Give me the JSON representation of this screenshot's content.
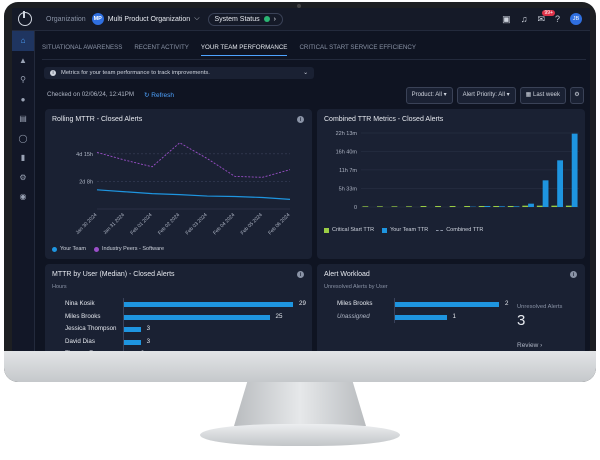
{
  "topbar": {
    "org_label": "Organization",
    "org_initials": "MP",
    "org_name": "Multi Product Organization",
    "status_label": "System Status",
    "notif_count": "99+",
    "user_initials": "JB"
  },
  "tabs": [
    {
      "label": "SITUATIONAL AWARENESS",
      "active": false
    },
    {
      "label": "RECENT ACTIVITY",
      "active": false
    },
    {
      "label": "YOUR TEAM PERFORMANCE",
      "active": true
    },
    {
      "label": "CRITICAL START SERVICE EFFICIENCY",
      "active": false
    }
  ],
  "info_bar": {
    "text": "Metrics for your team performance to track improvements."
  },
  "checked": {
    "text": "Checked on 02/06/24, 12:41PM",
    "refresh": "Refresh"
  },
  "filters": {
    "product": "Product: All",
    "priority": "Alert Priority: All",
    "range": "Last week"
  },
  "colors": {
    "accent": "#1e95e0",
    "peers": "#9b4fc9",
    "critical": "#9acd45",
    "combined": "#8a93a6"
  },
  "panels": {
    "mttr": {
      "title": "Rolling MTTR - Closed Alerts"
    },
    "ttr": {
      "title": "Combined TTR Metrics - Closed Alerts"
    },
    "user": {
      "title": "MTTR by User (Median) - Closed Alerts",
      "subtitle": "Hours"
    },
    "workload": {
      "title": "Alert Workload",
      "subtitle": "Unresolved Alerts by User",
      "stat_label": "Unresolved Alerts",
      "stat_value": "3",
      "review": "Review"
    }
  },
  "chart_data": [
    {
      "type": "line",
      "title": "Rolling MTTR - Closed Alerts",
      "x": [
        "Jan 30 2024",
        "Jan 31 2024",
        "Feb 01 2024",
        "Feb 02 2024",
        "Feb 03 2024",
        "Feb 04 2024",
        "Feb 05 2024",
        "Feb 06 2024"
      ],
      "yticks": [
        "4d 15h",
        "2d 8h"
      ],
      "ylim": [
        0,
        150
      ],
      "series": [
        {
          "name": "Your Team",
          "values": [
            40,
            36,
            32,
            30,
            27,
            26,
            24,
            20
          ]
        },
        {
          "name": "Industry Peers - Software",
          "values": [
            118,
            102,
            88,
            138,
            105,
            68,
            66,
            82
          ]
        }
      ]
    },
    {
      "type": "bar",
      "title": "Combined TTR Metrics - Closed Alerts",
      "yticks": [
        "22h 13m",
        "16h 40m",
        "11h 7m",
        "5h 33m",
        "0"
      ],
      "ylim": [
        0,
        22.2
      ],
      "series": [
        {
          "name": "Critical Start TTR",
          "values": [
            0.2,
            0.2,
            0.2,
            0.2,
            0.3,
            0.3,
            0.3,
            0.3,
            0.3,
            0.3,
            0.3,
            0.4,
            0.4,
            0.4,
            0.4
          ]
        },
        {
          "name": "Your Team TTR",
          "values": [
            0,
            0,
            0,
            0,
            0,
            0,
            0,
            0.1,
            0.3,
            0.2,
            0.2,
            1.0,
            8.0,
            14.0,
            22.0
          ]
        },
        {
          "name": "Combined TTR",
          "values": []
        }
      ]
    },
    {
      "type": "bar",
      "orientation": "horizontal",
      "title": "MTTR by User (Median) - Closed Alerts",
      "categories": [
        "Nina Kosik",
        "Miles Brooks",
        "Jessica Thompson",
        "David Dias",
        "Thomas Ferguson"
      ],
      "values": [
        29,
        25,
        3,
        3,
        2
      ]
    },
    {
      "type": "bar",
      "orientation": "horizontal",
      "title": "Alert Workload",
      "categories": [
        "Miles Brooks",
        "Unassigned"
      ],
      "values": [
        2,
        1
      ]
    }
  ]
}
